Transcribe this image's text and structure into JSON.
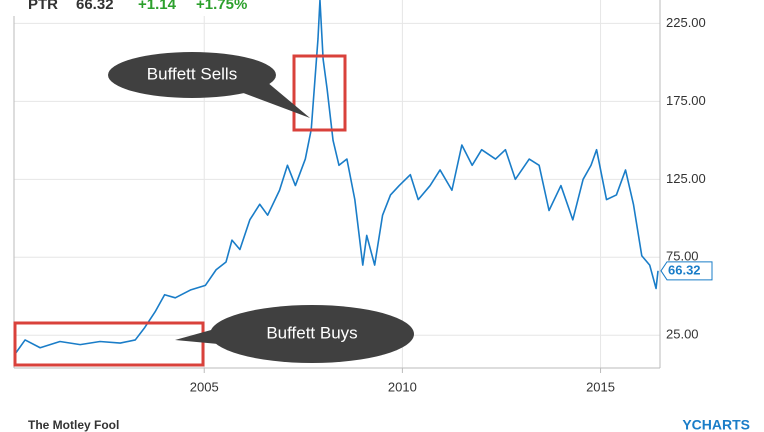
{
  "header": {
    "ticker": "PTR",
    "price": "66.32",
    "change": "+1.14",
    "change_pct": "+1.75%"
  },
  "chart_data": {
    "type": "line",
    "x": [
      2000.2,
      2000.48,
      2000.86,
      2001.36,
      2001.87,
      2002.37,
      2002.88,
      2003.26,
      2003.5,
      2003.76,
      2004.0,
      2004.27,
      2004.65,
      2005.03,
      2005.3,
      2005.55,
      2005.7,
      2005.9,
      2006.15,
      2006.4,
      2006.6,
      2006.9,
      2007.1,
      2007.3,
      2007.55,
      2007.7,
      2007.87,
      2007.92,
      2008.0,
      2008.1,
      2008.25,
      2008.4,
      2008.6,
      2008.8,
      2009.0,
      2009.1,
      2009.3,
      2009.5,
      2009.7,
      2009.92,
      2010.2,
      2010.4,
      2010.7,
      2010.95,
      2011.25,
      2011.5,
      2011.76,
      2012.0,
      2012.35,
      2012.6,
      2012.85,
      2013.2,
      2013.45,
      2013.7,
      2014.0,
      2014.3,
      2014.56,
      2014.76,
      2014.9,
      2015.15,
      2015.4,
      2015.63,
      2015.83,
      2016.04,
      2016.24,
      2016.4,
      2016.45
    ],
    "series": [
      {
        "name": "PTR",
        "color": "#1a7dc8",
        "values": [
          12,
          22,
          17,
          21,
          19,
          21,
          20,
          22,
          30,
          40,
          51,
          49,
          54,
          57,
          67,
          72,
          86,
          80,
          99,
          109,
          102,
          118,
          134,
          121,
          138,
          157,
          215,
          240,
          202,
          183,
          150,
          134,
          138,
          112,
          70,
          89,
          70,
          102,
          115,
          121,
          128,
          112,
          121,
          131,
          118,
          147,
          134,
          144,
          138,
          144,
          125,
          138,
          134,
          105,
          121,
          99,
          125,
          134,
          144,
          112,
          115,
          131,
          109,
          76,
          70,
          55,
          66.32
        ]
      }
    ],
    "last_value_label": "66.32",
    "xlim": [
      2000.2,
      2016.5
    ],
    "xticks": [
      2005,
      2010,
      2015
    ],
    "ylim": [
      4,
      240
    ],
    "yticks": [
      {
        "value": 25,
        "label": "25.00"
      },
      {
        "value": 75,
        "label": "75.00"
      },
      {
        "value": 125,
        "label": "125.00"
      },
      {
        "value": 175,
        "label": "175.00"
      },
      {
        "value": 225,
        "label": "225.00"
      }
    ],
    "grid": true,
    "annotations": [
      "Buffett Sells",
      "Buffett Buys"
    ]
  },
  "footer": {
    "source": "The Motley Fool",
    "brand": "YCHARTS"
  }
}
